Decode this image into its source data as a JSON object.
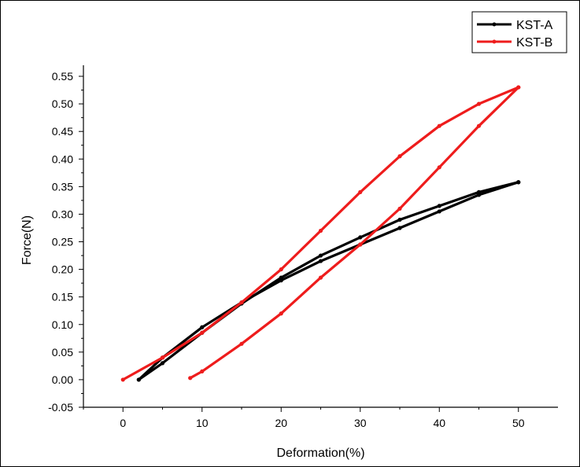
{
  "chart_data": {
    "type": "line",
    "xlabel": "Deformation(%)",
    "ylabel": "Force(N)",
    "xlim": [
      -5,
      55
    ],
    "ylim": [
      -0.05,
      0.57
    ],
    "x_ticks": [
      "0",
      "10",
      "20",
      "30",
      "40",
      "50"
    ],
    "y_ticks": [
      "-0.05",
      "0.00",
      "0.05",
      "0.10",
      "0.15",
      "0.20",
      "0.25",
      "0.30",
      "0.35",
      "0.40",
      "0.45",
      "0.50",
      "0.55"
    ],
    "grid": false,
    "legend_position": "top-right",
    "series": [
      {
        "name": "KST-A",
        "color": "#000000",
        "loading": {
          "x": [
            2,
            5,
            10,
            15,
            20,
            25,
            30,
            35,
            40,
            45,
            50
          ],
          "y": [
            0.0,
            0.04,
            0.095,
            0.14,
            0.18,
            0.215,
            0.245,
            0.275,
            0.305,
            0.335,
            0.358
          ]
        },
        "unloading": {
          "x": [
            50,
            45,
            40,
            35,
            30,
            25,
            20,
            15,
            10,
            5,
            2
          ],
          "y": [
            0.358,
            0.34,
            0.315,
            0.29,
            0.258,
            0.225,
            0.185,
            0.138,
            0.085,
            0.03,
            0.0
          ]
        }
      },
      {
        "name": "KST-B",
        "color": "#ee1c1c",
        "loading": {
          "x": [
            0,
            5,
            10,
            15,
            20,
            25,
            30,
            35,
            40,
            45,
            50
          ],
          "y": [
            0.0,
            0.04,
            0.085,
            0.14,
            0.2,
            0.27,
            0.34,
            0.405,
            0.46,
            0.5,
            0.53
          ]
        },
        "unloading": {
          "x": [
            50,
            45,
            40,
            35,
            30,
            25,
            20,
            15,
            10,
            8.5
          ],
          "y": [
            0.53,
            0.46,
            0.385,
            0.31,
            0.245,
            0.185,
            0.12,
            0.065,
            0.015,
            0.003
          ]
        }
      }
    ]
  }
}
